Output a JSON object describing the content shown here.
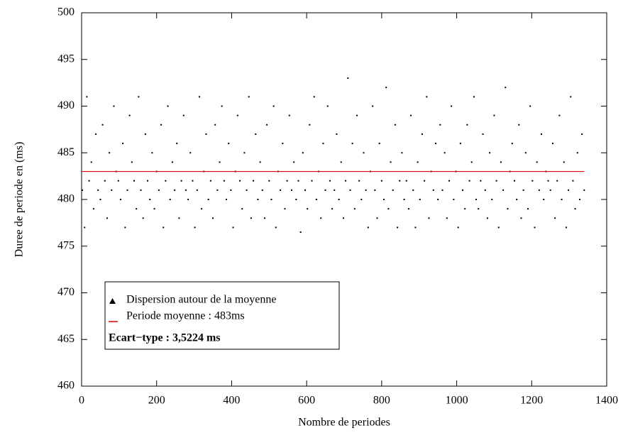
{
  "chart_data": {
    "type": "scatter",
    "xlabel": "Nombre de periodes",
    "ylabel": "Duree de periode en (ms)",
    "annotation": "Ecart−type : 3,5224 ms",
    "xlim": [
      0,
      1400
    ],
    "ylim": [
      460,
      500
    ],
    "xticks": [
      0,
      200,
      400,
      600,
      800,
      1000,
      1200,
      1400
    ],
    "yticks": [
      460,
      465,
      470,
      475,
      480,
      485,
      490,
      495,
      500
    ],
    "series": [
      {
        "name": "Dispersion  autour de la moyenne",
        "color": "#000000",
        "x": [
          2,
          8,
          14,
          20,
          26,
          32,
          38,
          44,
          50,
          56,
          62,
          68,
          74,
          80,
          86,
          92,
          98,
          104,
          110,
          116,
          122,
          128,
          134,
          140,
          146,
          152,
          158,
          164,
          170,
          176,
          182,
          188,
          194,
          200,
          206,
          212,
          218,
          224,
          230,
          236,
          242,
          248,
          254,
          260,
          266,
          272,
          278,
          284,
          290,
          296,
          302,
          308,
          314,
          320,
          326,
          332,
          338,
          344,
          350,
          356,
          362,
          368,
          374,
          380,
          386,
          392,
          398,
          404,
          410,
          416,
          422,
          428,
          434,
          440,
          446,
          452,
          458,
          464,
          470,
          476,
          482,
          488,
          494,
          500,
          506,
          512,
          518,
          524,
          530,
          536,
          542,
          548,
          554,
          560,
          566,
          572,
          578,
          584,
          590,
          596,
          602,
          608,
          614,
          620,
          626,
          632,
          638,
          644,
          650,
          656,
          662,
          668,
          674,
          680,
          686,
          692,
          698,
          704,
          710,
          716,
          722,
          728,
          734,
          740,
          746,
          752,
          758,
          764,
          770,
          776,
          782,
          788,
          794,
          800,
          806,
          812,
          818,
          824,
          830,
          836,
          842,
          848,
          854,
          860,
          866,
          872,
          878,
          884,
          890,
          896,
          902,
          908,
          914,
          920,
          926,
          932,
          938,
          944,
          950,
          956,
          962,
          968,
          974,
          980,
          986,
          992,
          998,
          1004,
          1010,
          1016,
          1022,
          1028,
          1034,
          1040,
          1046,
          1052,
          1058,
          1064,
          1070,
          1076,
          1082,
          1088,
          1094,
          1100,
          1106,
          1112,
          1118,
          1124,
          1130,
          1136,
          1142,
          1148,
          1154,
          1160,
          1166,
          1172,
          1178,
          1184,
          1190,
          1196,
          1202,
          1208,
          1214,
          1220,
          1226,
          1232,
          1238,
          1244,
          1250,
          1256,
          1262,
          1268,
          1274,
          1280,
          1286,
          1292,
          1298,
          1304,
          1310,
          1316,
          1322,
          1328,
          1334,
          1340
        ],
        "values": [
          481,
          477,
          491,
          482,
          484,
          479,
          487,
          481,
          480,
          488,
          482,
          478,
          485,
          481,
          490,
          483,
          482,
          480,
          486,
          477,
          481,
          489,
          484,
          482,
          479,
          491,
          481,
          478,
          487,
          482,
          480,
          485,
          479,
          483,
          481,
          488,
          477,
          482,
          490,
          480,
          484,
          481,
          486,
          478,
          482,
          489,
          481,
          480,
          485,
          482,
          477,
          481,
          491,
          479,
          483,
          487,
          480,
          482,
          478,
          488,
          481,
          484,
          490,
          482,
          480,
          486,
          481,
          477,
          483,
          489,
          482,
          479,
          485,
          481,
          491,
          478,
          482,
          487,
          480,
          484,
          481,
          478,
          488,
          482,
          480,
          490,
          477,
          483,
          481,
          486,
          479,
          482,
          489,
          481,
          484,
          480,
          482,
          476.5,
          485,
          481,
          479,
          488,
          482,
          491,
          480,
          483,
          478,
          486,
          481,
          490,
          482,
          479,
          481,
          487,
          480,
          484,
          478,
          482,
          493,
          481,
          486,
          479,
          489,
          482,
          480,
          485,
          481,
          477,
          483,
          490,
          481,
          478,
          486,
          482,
          480,
          492,
          479,
          484,
          481,
          488,
          477,
          482,
          485,
          480,
          482,
          479,
          489,
          481,
          477,
          484,
          480,
          487,
          482,
          491,
          478,
          483,
          481,
          486,
          480,
          488,
          481,
          485,
          478,
          482,
          490,
          480,
          483,
          477,
          486,
          481,
          479,
          488,
          482,
          484,
          491,
          480,
          479,
          482,
          487,
          481,
          478,
          485,
          480,
          489,
          482,
          477,
          484,
          481,
          492,
          479,
          483,
          486,
          482,
          480,
          488,
          478,
          481,
          485,
          479,
          490,
          482,
          477,
          484,
          481,
          487,
          480,
          483,
          482,
          481,
          486,
          478,
          482,
          489,
          480,
          484,
          477,
          481,
          491,
          482,
          479,
          485,
          480,
          487,
          481
        ]
      },
      {
        "name": "Periode moyenne : 483ms",
        "color": "#e00000",
        "type": "line",
        "x": [
          0,
          1340
        ],
        "values": [
          483,
          483
        ]
      }
    ]
  }
}
